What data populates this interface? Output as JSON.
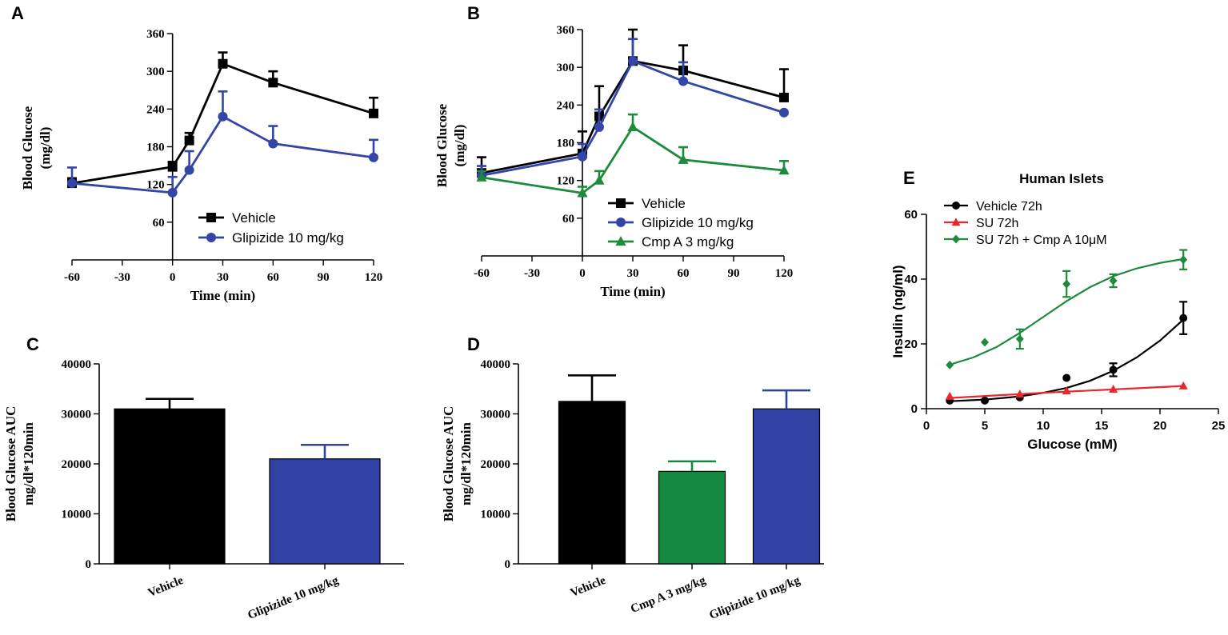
{
  "colors": {
    "black": "#000000",
    "blue": "#3446a5",
    "green": "#1e8a3c",
    "red": "#e8272f",
    "bar_blue": "#2f41a3",
    "bar_green": "#14883e"
  },
  "chart_data": [
    {
      "id": "A",
      "panel_label": "A",
      "type": "line",
      "xlabel": "Time (min)",
      "ylabel_lines": [
        "Blood  Glucose",
        "(mg/dl)"
      ],
      "xlim": [
        -60,
        120
      ],
      "ylim": [
        0,
        360
      ],
      "x_ticks": [
        -60,
        -30,
        0,
        30,
        60,
        90,
        120
      ],
      "x_tick_labels": [
        "-60",
        "-30",
        "0",
        "30",
        "60",
        "90",
        "120"
      ],
      "y_ticks": [
        60,
        120,
        180,
        240,
        300,
        360
      ],
      "y_tick_labels": [
        "60",
        "120",
        "180",
        "240",
        "300",
        "360"
      ],
      "legend": "lower-center",
      "series": [
        {
          "name": "Vehicle",
          "color": "#000000",
          "marker": "square",
          "x": [
            -60,
            0,
            10,
            30,
            60,
            120
          ],
          "y": [
            122,
            148,
            190,
            312,
            282,
            233
          ],
          "err": [
            8,
            8,
            12,
            18,
            18,
            25
          ]
        },
        {
          "name": "Glipizide 10 mg/kg",
          "color": "#3446a5",
          "marker": "circle",
          "x": [
            -60,
            0,
            10,
            30,
            60,
            120
          ],
          "y": [
            122,
            107,
            143,
            228,
            185,
            163
          ],
          "err": [
            25,
            25,
            30,
            40,
            28,
            28
          ]
        }
      ]
    },
    {
      "id": "B",
      "panel_label": "B",
      "type": "line",
      "xlabel": "Time (min)",
      "ylabel_lines": [
        "Blood  Glucose",
        "(mg/dl)"
      ],
      "xlim": [
        -60,
        120
      ],
      "ylim": [
        0,
        360
      ],
      "x_ticks": [
        -60,
        -30,
        0,
        30,
        60,
        90,
        120
      ],
      "x_tick_labels": [
        "-60",
        "-30",
        "0",
        "30",
        "60",
        "90",
        "120"
      ],
      "y_ticks": [
        60,
        120,
        180,
        240,
        300,
        360
      ],
      "y_tick_labels": [
        "60",
        "120",
        "180",
        "240",
        "300",
        "360"
      ],
      "legend": "lower-center",
      "series": [
        {
          "name": "Vehicle",
          "color": "#000000",
          "marker": "square",
          "x": [
            -60,
            0,
            10,
            30,
            60,
            120
          ],
          "y": [
            132,
            163,
            222,
            310,
            295,
            252
          ],
          "err": [
            25,
            35,
            48,
            50,
            40,
            45
          ]
        },
        {
          "name": "Glipizide 10 mg/kg",
          "color": "#3446a5",
          "marker": "circle",
          "x": [
            -60,
            0,
            10,
            30,
            60,
            120
          ],
          "y": [
            128,
            158,
            205,
            310,
            278,
            228
          ],
          "err": [
            15,
            20,
            28,
            35,
            30,
            0
          ]
        },
        {
          "name": "Cmp A 3 mg/kg",
          "color": "#1e8a3c",
          "marker": "triangle",
          "x": [
            -60,
            0,
            10,
            30,
            60,
            120
          ],
          "y": [
            125,
            100,
            120,
            205,
            153,
            136
          ],
          "err": [
            10,
            10,
            15,
            20,
            20,
            15
          ]
        }
      ]
    },
    {
      "id": "C",
      "panel_label": "C",
      "type": "bar",
      "ylabel_lines": [
        "Blood Glucose AUC",
        "mg/dl*120min"
      ],
      "ylim": [
        0,
        40000
      ],
      "y_ticks": [
        0,
        10000,
        20000,
        30000,
        40000
      ],
      "y_tick_labels": [
        "0",
        "10000",
        "20000",
        "30000",
        "40000"
      ],
      "categories": [
        "Vehicle",
        "Glipizide 10 mg/kg"
      ],
      "values": [
        31000,
        21000
      ],
      "errors": [
        2000,
        2800
      ],
      "bar_colors": [
        "#000000",
        "#2f41a3"
      ]
    },
    {
      "id": "D",
      "panel_label": "D",
      "type": "bar",
      "ylabel_lines": [
        "Blood Glucose AUC",
        "mg/dl*120min"
      ],
      "ylim": [
        0,
        40000
      ],
      "y_ticks": [
        0,
        10000,
        20000,
        30000,
        40000
      ],
      "y_tick_labels": [
        "0",
        "10000",
        "20000",
        "30000",
        "40000"
      ],
      "categories": [
        "Vehicle",
        "Cmp A 3 mg/kg",
        "Glipizide 10 mg/kg"
      ],
      "values": [
        32500,
        18500,
        31000
      ],
      "errors": [
        5200,
        2000,
        3700
      ],
      "bar_colors": [
        "#000000",
        "#14883e",
        "#2f41a3"
      ]
    },
    {
      "id": "E",
      "panel_label": "E",
      "type": "scatter",
      "title": "Human Islets",
      "xlabel": "Glucose (mM)",
      "ylabel": "Insulin (ng/ml)",
      "xlim": [
        0,
        25
      ],
      "ylim": [
        0,
        60
      ],
      "x_ticks": [
        0,
        5,
        10,
        15,
        20,
        25
      ],
      "x_tick_labels": [
        "0",
        "5",
        "10",
        "15",
        "20",
        "25"
      ],
      "y_ticks": [
        0,
        20,
        40,
        60
      ],
      "y_tick_labels": [
        "0",
        "20",
        "40",
        "60"
      ],
      "legend": "top-left",
      "series": [
        {
          "name": "Vehicle 72h",
          "color": "#000000",
          "marker": "circle",
          "x": [
            2,
            5,
            8,
            12,
            16,
            22
          ],
          "y": [
            2.5,
            2.5,
            3.5,
            9.5,
            12,
            28
          ],
          "err": [
            0.5,
            0.5,
            0.5,
            0.8,
            2,
            5
          ],
          "fit": [
            [
              2,
              2.3
            ],
            [
              5,
              2.8
            ],
            [
              8,
              3.8
            ],
            [
              10,
              4.9
            ],
            [
              12,
              6.4
            ],
            [
              14,
              8.6
            ],
            [
              16,
              11.7
            ],
            [
              18,
              15.8
            ],
            [
              20,
              21
            ],
            [
              22,
              27.5
            ]
          ]
        },
        {
          "name": "SU 72h",
          "color": "#e8272f",
          "marker": "triangle",
          "x": [
            2,
            8,
            12,
            16,
            22
          ],
          "y": [
            3.8,
            4.5,
            5.5,
            6,
            7
          ],
          "err": [
            0.4,
            0.5,
            0.5,
            0.6,
            0.6
          ],
          "fit": [
            [
              2,
              3.3
            ],
            [
              6,
              4.1
            ],
            [
              10,
              4.9
            ],
            [
              14,
              5.6
            ],
            [
              18,
              6.3
            ],
            [
              22,
              7
            ]
          ]
        },
        {
          "name": "SU 72h + Cmp  A 10μM",
          "color": "#1e8a3c",
          "marker": "diamond",
          "x": [
            2,
            5,
            8,
            12,
            16,
            22
          ],
          "y": [
            13.5,
            20.5,
            21.5,
            38.5,
            39.5,
            46
          ],
          "err": [
            0.5,
            0.5,
            3,
            4,
            2,
            3
          ],
          "fit": [
            [
              2,
              13.6
            ],
            [
              4,
              15.8
            ],
            [
              6,
              19
            ],
            [
              8,
              23.4
            ],
            [
              10,
              28.3
            ],
            [
              12,
              33.2
            ],
            [
              14,
              37.5
            ],
            [
              16,
              40.9
            ],
            [
              18,
              43.3
            ],
            [
              20,
              45
            ],
            [
              22,
              46.2
            ]
          ]
        }
      ]
    }
  ]
}
